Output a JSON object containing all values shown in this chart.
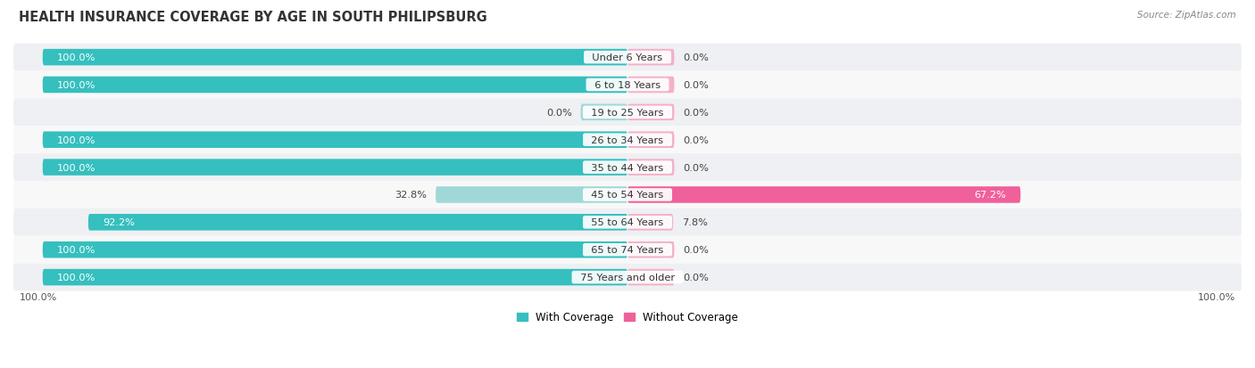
{
  "title": "HEALTH INSURANCE COVERAGE BY AGE IN SOUTH PHILIPSBURG",
  "source": "Source: ZipAtlas.com",
  "categories": [
    "Under 6 Years",
    "6 to 18 Years",
    "19 to 25 Years",
    "26 to 34 Years",
    "35 to 44 Years",
    "45 to 54 Years",
    "55 to 64 Years",
    "65 to 74 Years",
    "75 Years and older"
  ],
  "with_coverage": [
    100.0,
    100.0,
    0.0,
    100.0,
    100.0,
    32.8,
    92.2,
    100.0,
    100.0
  ],
  "without_coverage": [
    0.0,
    0.0,
    0.0,
    0.0,
    0.0,
    67.2,
    7.8,
    0.0,
    0.0
  ],
  "color_with": "#35bfbf",
  "color_without": "#f0609a",
  "color_with_light": "#a0d8d8",
  "color_without_light": "#f4b0c8",
  "min_bar_pct": 8.0,
  "title_fontsize": 10.5,
  "label_fontsize": 8.2,
  "value_fontsize": 8.2,
  "tick_fontsize": 8.0,
  "legend_fontsize": 8.5
}
